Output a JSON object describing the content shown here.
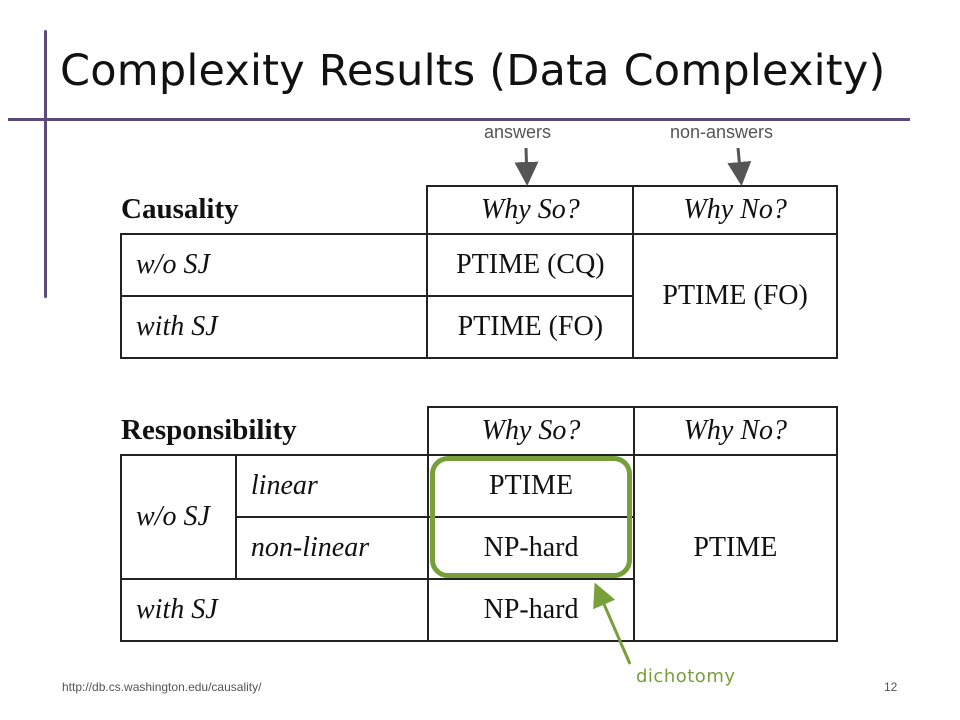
{
  "slide": {
    "title": "Complexity Results (Data Complexity)",
    "column_labels": {
      "answers": "answers",
      "non_answers": "non-answers"
    },
    "annotation": "dichotomy",
    "footer_url": "http://db.cs.washington.edu/causality/",
    "page_number": "12",
    "accent_color": "#5b4a7a",
    "highlight_color": "#77a03a"
  },
  "causality_table": {
    "header": "Causality",
    "col_why_so": "Why So?",
    "col_why_no": "Why No?",
    "rows": [
      {
        "label": "w/o SJ",
        "why_so": "PTIME (CQ)"
      },
      {
        "label": "with SJ",
        "why_so": "PTIME (FO)"
      }
    ],
    "why_no_value": "PTIME (FO)"
  },
  "responsibility_table": {
    "header": "Responsibility",
    "col_why_so": "Why So?",
    "col_why_no": "Why No?",
    "group_label": "w/o SJ",
    "rows": [
      {
        "label": "linear",
        "why_so": "PTIME"
      },
      {
        "label": "non-linear",
        "why_so": "NP-hard"
      },
      {
        "label": "with SJ",
        "why_so": "NP-hard"
      }
    ],
    "why_no_value": "PTIME"
  }
}
